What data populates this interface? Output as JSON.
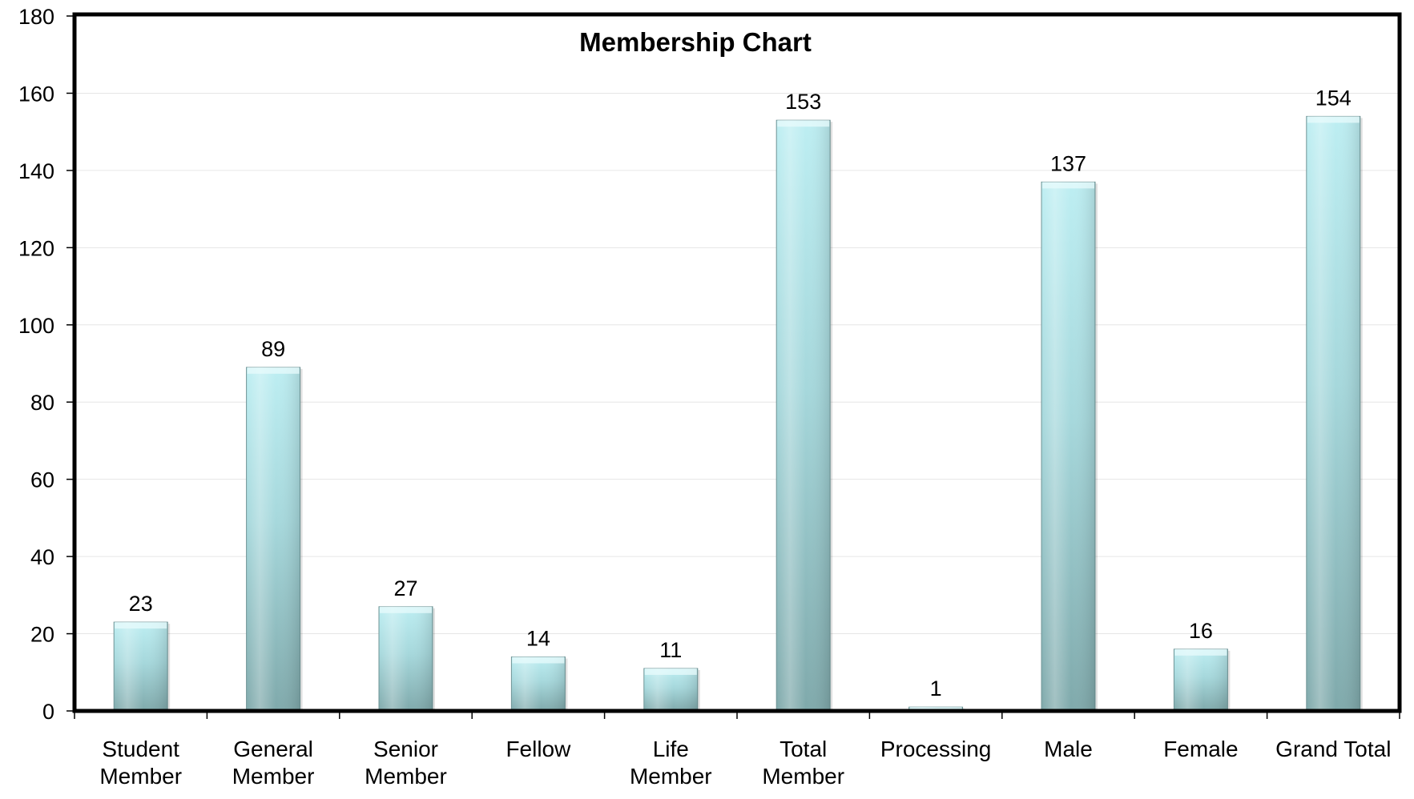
{
  "chart_data": {
    "type": "bar",
    "title": "Membership Chart",
    "xlabel": "",
    "ylabel": "",
    "ylim": [
      0,
      180
    ],
    "yticks": [
      0,
      20,
      40,
      60,
      80,
      100,
      120,
      140,
      160,
      180
    ],
    "categories": [
      [
        "Student",
        "Member"
      ],
      [
        "General",
        "Member"
      ],
      [
        "Senior",
        "Member"
      ],
      [
        "Fellow"
      ],
      [
        "Life",
        "Member"
      ],
      [
        "Total",
        "Member"
      ],
      [
        "Processing"
      ],
      [
        "Male"
      ],
      [
        "Female"
      ],
      [
        "Grand Total"
      ]
    ],
    "values": [
      23,
      89,
      27,
      14,
      11,
      153,
      1,
      137,
      16,
      154
    ],
    "data_labels": [
      "23",
      "89",
      "27",
      "14",
      "11",
      "153",
      "1",
      "137",
      "16",
      "154"
    ],
    "grid": true,
    "legend": "none",
    "colors": {
      "bar_top": "#bdeef2",
      "bar_mid": "#a6d8dc",
      "bar_bottom": "#7fa9ab",
      "bar_edge": "#6f9496",
      "gridline": "#e6e6e6",
      "frame": "#000000"
    }
  }
}
